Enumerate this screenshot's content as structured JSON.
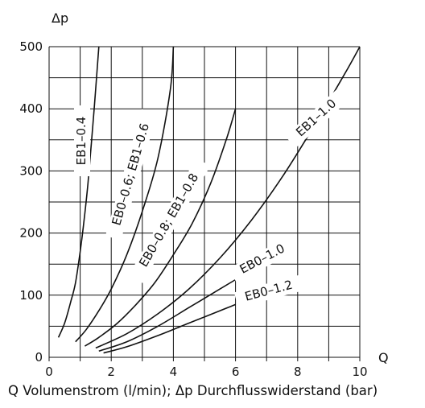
{
  "chart_data": {
    "type": "line",
    "xlabel": "Q",
    "ylabel": "Δp",
    "xlim": [
      0,
      10
    ],
    "ylim": [
      0,
      500
    ],
    "x_ticks": [
      0,
      2,
      4,
      6,
      8,
      10
    ],
    "y_ticks": [
      0,
      100,
      200,
      300,
      400,
      500
    ],
    "grid": true,
    "series": [
      {
        "name": "EB1–0.4",
        "x": [
          0.3,
          0.5,
          0.7,
          0.85,
          1.0,
          1.1,
          1.25,
          1.45,
          1.6
        ],
        "y": [
          32,
          55,
          90,
          120,
          170,
          210,
          280,
          400,
          500
        ]
      },
      {
        "name": "EB0–0.6; EB1–0.6",
        "x": [
          0.85,
          1.2,
          1.6,
          2.0,
          2.5,
          3.0,
          3.5,
          3.9,
          4.0
        ],
        "y": [
          25,
          45,
          75,
          110,
          165,
          235,
          320,
          430,
          500
        ]
      },
      {
        "name": "EB0–0.8; EB1–0.8",
        "x": [
          1.15,
          1.6,
          2.2,
          2.8,
          3.4,
          4.0,
          4.6,
          5.2,
          5.7,
          6.0
        ],
        "y": [
          18,
          32,
          55,
          85,
          120,
          165,
          215,
          280,
          350,
          400
        ]
      },
      {
        "name": "EB1–1.0",
        "x": [
          1.5,
          2.5,
          3.5,
          4.5,
          5.5,
          6.5,
          7.5,
          8.5,
          9.5,
          10.0
        ],
        "y": [
          15,
          38,
          70,
          110,
          160,
          220,
          290,
          370,
          455,
          500
        ]
      },
      {
        "name": "EB0–1.0",
        "x": [
          1.6,
          2.5,
          3.5,
          4.5,
          5.5,
          6.0
        ],
        "y": [
          10,
          25,
          50,
          80,
          110,
          125
        ]
      },
      {
        "name": "EB0–1.2",
        "x": [
          1.75,
          2.5,
          3.5,
          4.5,
          5.5,
          6.0
        ],
        "y": [
          7,
          17,
          35,
          55,
          75,
          85
        ]
      }
    ]
  },
  "caption": "Q Volumenstrom (l/min); Δp Durchflusswiderstand (bar)"
}
